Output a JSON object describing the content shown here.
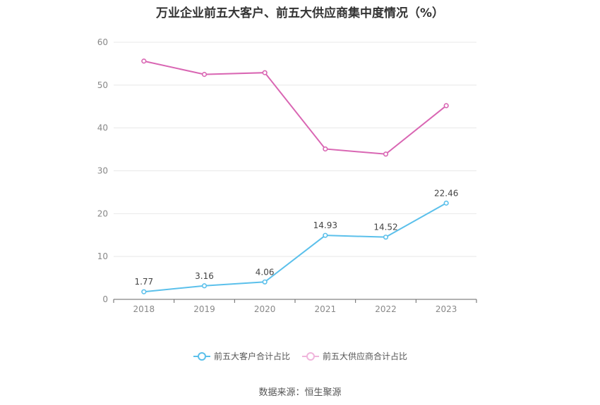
{
  "chart_data": {
    "type": "line",
    "title": "万业企业前五大客户、前五大供应商集中度情况（%）",
    "categories": [
      "2018",
      "2019",
      "2020",
      "2021",
      "2022",
      "2023"
    ],
    "ylim": [
      0,
      60
    ],
    "yticks": [
      "0",
      "10",
      "20",
      "30",
      "40",
      "50",
      "60"
    ],
    "grid": true,
    "legend_position": "bottom",
    "series": [
      {
        "name": "前五大客户合计占比",
        "color": "#5bc0eb",
        "values": [
          1.77,
          3.16,
          4.06,
          14.93,
          14.52,
          22.46
        ],
        "labels": [
          "1.77",
          "3.16",
          "4.06",
          "14.93",
          "14.52",
          "22.46"
        ]
      },
      {
        "name": "前五大供应商合计占比",
        "color": "#d966b3",
        "values": [
          55.6,
          52.5,
          52.9,
          35.1,
          33.9,
          45.2
        ]
      }
    ]
  },
  "source_text": "数据来源：恒生聚源"
}
